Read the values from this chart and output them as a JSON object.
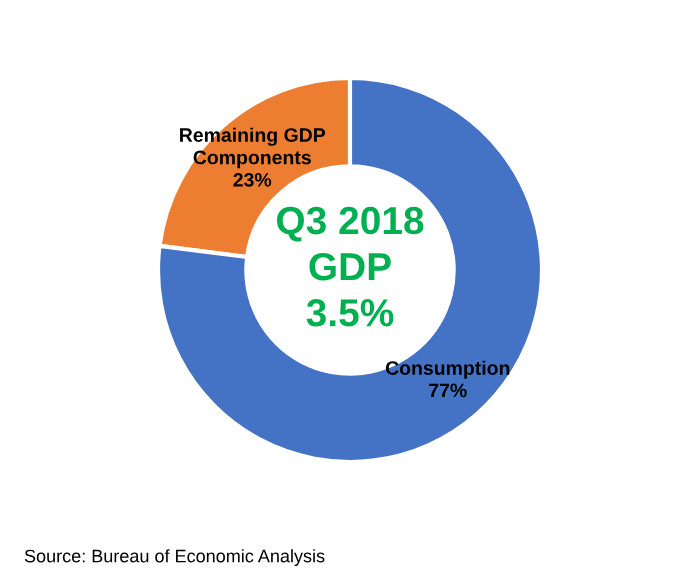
{
  "chart_data": {
    "type": "donut",
    "title": "Q3 2018\nGDP\n3.5%",
    "categories": [
      "Remaining GDP\nComponents",
      "Consumption"
    ],
    "values": [
      23,
      77
    ],
    "colors": [
      "#ed7d31",
      "#4472c4"
    ],
    "value_labels": [
      "23%",
      "77%"
    ],
    "annotations": [
      "Source: Bureau of Economic Analysis"
    ]
  }
}
